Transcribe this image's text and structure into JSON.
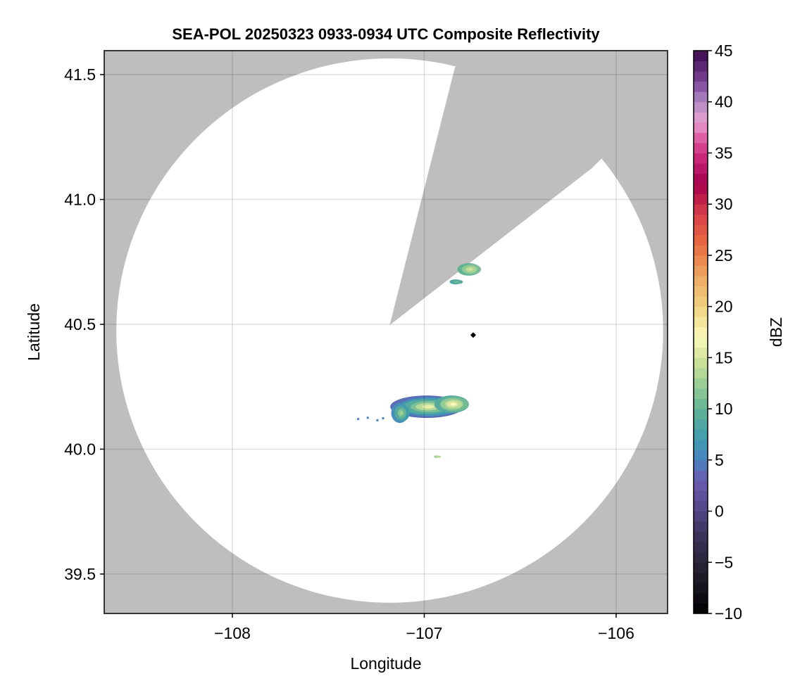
{
  "chart_data": {
    "type": "heatmap",
    "title": "SEA-POL 20250323 0933-0934 UTC Composite Reflectivity",
    "xlabel": "Longitude",
    "ylabel": "Latitude",
    "xlim": [
      -108.668,
      -105.732
    ],
    "ylim": [
      39.342,
      41.596
    ],
    "xticks": [
      -108,
      -107,
      -106
    ],
    "xtick_labels": [
      "−108",
      "−107",
      "−106"
    ],
    "yticks": [
      39.5,
      40.0,
      40.5,
      41.0,
      41.5
    ],
    "ytick_labels": [
      "39.5",
      "40.0",
      "40.5",
      "41.0",
      "41.5"
    ],
    "grid": true,
    "background_color": "#bebebe",
    "coverage": {
      "center_lon": -107.18,
      "center_lat": 40.475,
      "radius_lon": 1.425,
      "radius_lat": 1.09,
      "blocked_sector": {
        "apex": [
          -107.18,
          40.497
        ],
        "edge_a": [
          -106.84,
          41.53
        ],
        "edge_b": [
          -106.127,
          41.125
        ]
      }
    },
    "marker": {
      "lon": -106.745,
      "lat": 40.457,
      "shape": "diamond",
      "color": "#000000"
    },
    "echoes": [
      {
        "lon": -106.98,
        "lat": 40.17,
        "half_width_lon": 0.19,
        "half_width_lat": 0.045,
        "dbz_edge": 4,
        "dbz_core": 16
      },
      {
        "lon": -107.12,
        "lat": 40.145,
        "half_width_lon": 0.045,
        "half_width_lat": 0.04,
        "dbz_edge": 6,
        "dbz_core": 13
      },
      {
        "lon": -106.85,
        "lat": 40.18,
        "half_width_lon": 0.09,
        "half_width_lat": 0.035,
        "dbz_edge": 9,
        "dbz_core": 17
      },
      {
        "lon": -106.76,
        "lat": 40.72,
        "half_width_lon": 0.06,
        "half_width_lat": 0.025,
        "dbz_edge": 10,
        "dbz_core": 15
      },
      {
        "lon": -106.83,
        "lat": 40.67,
        "half_width_lon": 0.03,
        "half_width_lat": 0.01,
        "dbz_edge": 8,
        "dbz_core": 11
      },
      {
        "lon": -106.93,
        "lat": 39.97,
        "half_width_lon": 0.012,
        "half_width_lat": 0.005,
        "dbz_edge": 12,
        "dbz_core": 15
      }
    ],
    "colorbar": {
      "label": "dBZ",
      "range": [
        -10,
        45
      ],
      "step": 1,
      "ticks": [
        -10,
        -5,
        0,
        5,
        10,
        15,
        20,
        25,
        30,
        35,
        40,
        45
      ],
      "tick_labels": [
        "−10",
        "−5",
        "0",
        "5",
        "10",
        "15",
        "20",
        "25",
        "30",
        "35",
        "40",
        "45"
      ],
      "color_stops": [
        [
          -10,
          "#000000"
        ],
        [
          -6,
          "#221e2c"
        ],
        [
          -2,
          "#3e3560"
        ],
        [
          1,
          "#5a4c94"
        ],
        [
          3,
          "#6a5aae"
        ],
        [
          5,
          "#4a82c0"
        ],
        [
          7,
          "#3f9cb0"
        ],
        [
          10,
          "#62b394"
        ],
        [
          13,
          "#a8d496"
        ],
        [
          15,
          "#d4e49a"
        ],
        [
          17,
          "#fafabc"
        ],
        [
          20,
          "#f0d280"
        ],
        [
          23,
          "#eca862"
        ],
        [
          26,
          "#e86c40"
        ],
        [
          29,
          "#d8404a"
        ],
        [
          32,
          "#a4004c"
        ],
        [
          35,
          "#d03080"
        ],
        [
          37,
          "#e070b0"
        ],
        [
          38,
          "#e8a0d0"
        ],
        [
          40,
          "#b08ac4"
        ],
        [
          42,
          "#7c4498"
        ],
        [
          45,
          "#3a0a4c"
        ]
      ]
    }
  }
}
